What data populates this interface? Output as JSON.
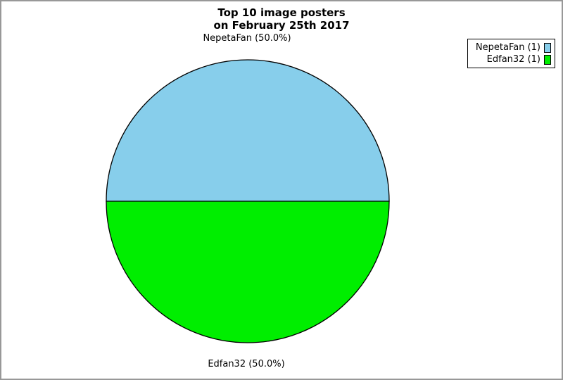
{
  "chart_data": {
    "type": "pie",
    "title_lines": [
      "Top 10 image posters",
      "on February 25th 2017"
    ],
    "title": "Top 10 image posters on February 25th 2017",
    "slices": [
      {
        "label": "NepetaFan",
        "value": 1,
        "percent": 50.0,
        "callout": "NepetaFan (50.0%)",
        "legend_label": "NepetaFan (1)",
        "color": "#87ceeb"
      },
      {
        "label": "Edfan32",
        "value": 1,
        "percent": 50.0,
        "callout": "Edfan32 (50.0%)",
        "legend_label": "Edfan32 (1)",
        "color": "#00ee00"
      }
    ],
    "outline_color": "#000000",
    "legend_position": "top-right",
    "legend_border_color": "#000000",
    "page_border_color": "#989898",
    "background_color": "#ffffff"
  }
}
